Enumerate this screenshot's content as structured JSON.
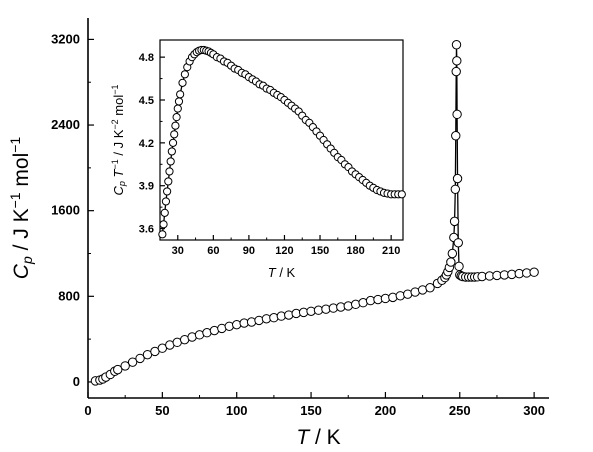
{
  "chart_data": [
    {
      "type": "line",
      "role": "main",
      "xlim": [
        0,
        310
      ],
      "ylim": [
        -150,
        3400
      ],
      "xticks": [
        0,
        50,
        100,
        150,
        200,
        250,
        300
      ],
      "yticks": [
        0,
        800,
        1600,
        2400,
        3200
      ],
      "xtick_labels": [
        "0",
        "50",
        "100",
        "150",
        "200",
        "250",
        "300"
      ],
      "ytick_labels": [
        "0",
        "800",
        "1600",
        "2400",
        "3200"
      ],
      "xlabel": "T / K",
      "ylabel": "Cp / J K-1 mol-1",
      "markers": "open-circle",
      "series": [
        {
          "x": [
            5,
            8,
            10,
            12,
            15,
            18,
            20,
            25,
            30,
            35,
            40,
            45,
            50,
            55,
            60,
            65,
            70,
            75,
            80,
            85,
            90,
            95,
            100,
            105,
            110,
            115,
            120,
            125,
            130,
            135,
            140,
            145,
            150,
            155,
            160,
            165,
            170,
            175,
            180,
            185,
            190,
            195,
            200,
            205,
            210,
            215,
            220,
            225,
            230,
            235,
            238,
            240,
            241,
            242,
            243,
            244,
            245,
            246,
            246.5,
            247,
            247.3,
            247.6,
            247.8,
            248,
            248.2,
            248.5,
            249,
            249.5,
            250,
            251,
            252,
            254,
            256,
            258,
            260,
            262,
            265,
            270,
            275,
            280,
            285,
            290,
            295,
            300
          ],
          "y": [
            10,
            18,
            28,
            45,
            70,
            100,
            115,
            150,
            185,
            220,
            255,
            285,
            315,
            345,
            370,
            395,
            420,
            440,
            460,
            480,
            500,
            520,
            535,
            550,
            560,
            575,
            590,
            600,
            615,
            625,
            640,
            650,
            660,
            670,
            680,
            690,
            700,
            710,
            725,
            740,
            760,
            770,
            780,
            790,
            805,
            820,
            840,
            860,
            880,
            920,
            950,
            975,
            1000,
            1030,
            1070,
            1120,
            1200,
            1350,
            1500,
            1800,
            2300,
            2900,
            3150,
            3000,
            2500,
            1900,
            1300,
            1080,
            1000,
            990,
            985,
            980,
            980,
            980,
            980,
            982,
            985,
            990,
            995,
            1000,
            1005,
            1012,
            1018,
            1025
          ]
        }
      ]
    },
    {
      "type": "line",
      "role": "inset",
      "xlim": [
        15,
        220
      ],
      "ylim": [
        3.52,
        4.92
      ],
      "xticks": [
        30,
        60,
        90,
        120,
        150,
        180,
        210
      ],
      "yticks": [
        3.6,
        3.9,
        4.2,
        4.5,
        4.8
      ],
      "xtick_labels": [
        "30",
        "60",
        "90",
        "120",
        "150",
        "180",
        "210"
      ],
      "ytick_labels": [
        "3.6",
        "3.9",
        "4.2",
        "4.5",
        "4.8"
      ],
      "xlabel": "T / K",
      "ylabel": "Cp T-1 / J K-2 mol-1",
      "markers": "open-circle",
      "series": [
        {
          "x": [
            17,
            18,
            19,
            20,
            21,
            22,
            23,
            24,
            25,
            26,
            27,
            28,
            29,
            30,
            31,
            32,
            34,
            36,
            38,
            40,
            42,
            44,
            46,
            48,
            50,
            52,
            54,
            56,
            58,
            60,
            63,
            66,
            69,
            72,
            75,
            78,
            81,
            84,
            87,
            90,
            93,
            96,
            99,
            102,
            105,
            108,
            111,
            114,
            117,
            120,
            123,
            126,
            129,
            132,
            135,
            138,
            141,
            144,
            147,
            150,
            153,
            156,
            159,
            162,
            165,
            168,
            171,
            174,
            177,
            180,
            183,
            186,
            189,
            192,
            195,
            198,
            201,
            204,
            207,
            210,
            213,
            216,
            219
          ],
          "y": [
            3.56,
            3.63,
            3.71,
            3.79,
            3.86,
            3.93,
            4.0,
            4.07,
            4.14,
            4.2,
            4.26,
            4.32,
            4.38,
            4.44,
            4.49,
            4.54,
            4.62,
            4.68,
            4.73,
            4.77,
            4.8,
            4.82,
            4.835,
            4.845,
            4.85,
            4.85,
            4.845,
            4.84,
            4.83,
            4.82,
            4.8,
            4.79,
            4.77,
            4.76,
            4.74,
            4.72,
            4.71,
            4.69,
            4.68,
            4.66,
            4.645,
            4.63,
            4.61,
            4.6,
            4.58,
            4.57,
            4.55,
            4.535,
            4.52,
            4.5,
            4.48,
            4.46,
            4.44,
            4.42,
            4.39,
            4.36,
            4.34,
            4.31,
            4.28,
            4.25,
            4.22,
            4.19,
            4.16,
            4.13,
            4.1,
            4.08,
            4.05,
            4.03,
            4.0,
            3.98,
            3.96,
            3.94,
            3.92,
            3.9,
            3.885,
            3.87,
            3.86,
            3.85,
            3.845,
            3.84,
            3.84,
            3.84,
            3.84
          ]
        }
      ]
    }
  ]
}
